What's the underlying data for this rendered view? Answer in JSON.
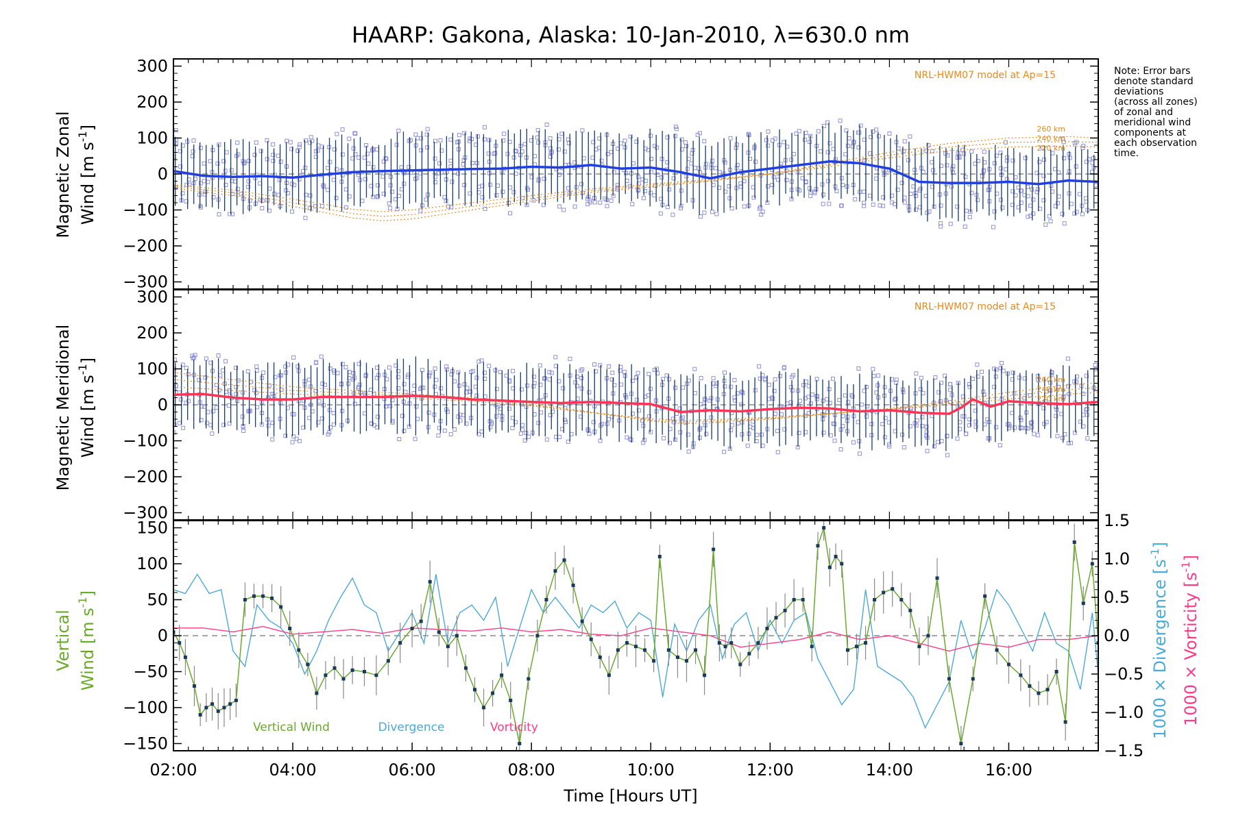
{
  "title": "HAARP: Gakona,  Alaska: 10-Jan-2010, λ=630.0 nm",
  "note_lines": [
    "Note: Error bars",
    "denote standard",
    "deviations",
    "(across all zones)",
    "of zonal and",
    "meridional wind",
    "components at",
    "each observation",
    "time."
  ],
  "model_label": "NRL-HWM07 model at Ap=15",
  "altitude_labels": [
    "260 km",
    "240 km",
    "220 km"
  ],
  "xlabel": "Time [Hours UT]",
  "colors": {
    "zonal": "#1f3fe0",
    "meridional": "#ff3355",
    "vertical": "#6aaa2a",
    "divergence": "#4aaad8",
    "vorticity": "#ff3a88",
    "model": "#e8891a",
    "scatter": "#8f8fd8",
    "errorbar": "#163a6a"
  },
  "chart_data": [
    {
      "type": "line",
      "panel": "zonal",
      "ylabel_line1": "Magnetic Zonal",
      "ylabel_line2": "Wind [m s",
      "ylabel_sup": "-1",
      "ylabel_end": "]",
      "xlim": [
        2.0,
        17.5
      ],
      "ylim": [
        -320,
        320
      ],
      "yticks": [
        "300",
        "200",
        "100",
        "0",
        "−100",
        "−200",
        "−300"
      ],
      "series": [
        {
          "name": "Magnetic Zonal Wind",
          "x": [
            2.0,
            2.5,
            3.0,
            3.5,
            4.0,
            4.5,
            5.0,
            5.5,
            6.0,
            6.5,
            7.0,
            7.5,
            8.0,
            8.5,
            9.0,
            9.5,
            10.0,
            10.5,
            11.0,
            11.5,
            12.0,
            12.5,
            13.0,
            13.5,
            14.0,
            14.5,
            15.0,
            15.5,
            16.0,
            16.5,
            17.0,
            17.5
          ],
          "y": [
            8,
            -5,
            -8,
            -6,
            -10,
            -2,
            5,
            8,
            10,
            12,
            14,
            15,
            20,
            18,
            25,
            15,
            18,
            5,
            -12,
            5,
            15,
            25,
            35,
            30,
            15,
            -22,
            -25,
            -25,
            -22,
            -28,
            -18,
            -22
          ]
        }
      ],
      "model_curves": [
        {
          "name": "260 km",
          "x": [
            2.0,
            3.0,
            4.0,
            5.0,
            5.5,
            6.0,
            7.0,
            8.0,
            9.0,
            10.0,
            11.0,
            12.0,
            13.0,
            14.0,
            15.0,
            16.0,
            17.0,
            17.5
          ],
          "y": [
            -40,
            -60,
            -90,
            -122,
            -130,
            -125,
            -100,
            -75,
            -52,
            -36,
            -20,
            0,
            30,
            60,
            85,
            100,
            104,
            100
          ]
        },
        {
          "name": "240 km",
          "x": [
            2.0,
            3.0,
            4.0,
            5.0,
            5.5,
            6.0,
            7.0,
            8.0,
            9.0,
            10.0,
            11.0,
            12.0,
            13.0,
            14.0,
            15.0,
            16.0,
            17.0,
            17.5
          ],
          "y": [
            -35,
            -52,
            -80,
            -110,
            -118,
            -113,
            -90,
            -68,
            -47,
            -32,
            -18,
            0,
            25,
            52,
            75,
            88,
            90,
            88
          ]
        },
        {
          "name": "220 km",
          "x": [
            2.0,
            3.0,
            4.0,
            5.0,
            5.5,
            6.0,
            7.0,
            8.0,
            9.0,
            10.0,
            11.0,
            12.0,
            13.0,
            14.0,
            15.0,
            16.0,
            17.0,
            17.5
          ],
          "y": [
            -30,
            -45,
            -70,
            -98,
            -105,
            -100,
            -80,
            -60,
            -42,
            -28,
            -15,
            0,
            20,
            45,
            65,
            75,
            78,
            75
          ]
        }
      ]
    },
    {
      "type": "line",
      "panel": "meridional",
      "ylabel_line1": "Magnetic Meridional",
      "ylabel_line2": "Wind [m s",
      "ylabel_sup": "-1",
      "ylabel_end": "]",
      "xlim": [
        2.0,
        17.5
      ],
      "ylim": [
        -320,
        320
      ],
      "yticks": [
        "300",
        "200",
        "100",
        "0",
        "−100",
        "−200",
        "−300"
      ],
      "series": [
        {
          "name": "Magnetic Meridional Wind",
          "x": [
            2.0,
            2.5,
            3.0,
            3.5,
            4.0,
            4.5,
            5.0,
            5.5,
            6.0,
            6.5,
            7.0,
            7.5,
            8.0,
            8.5,
            9.0,
            9.5,
            10.0,
            10.5,
            11.0,
            11.5,
            12.0,
            12.5,
            13.0,
            13.5,
            14.0,
            14.5,
            15.0,
            15.2,
            15.4,
            15.7,
            16.0,
            16.5,
            17.0,
            17.5
          ],
          "y": [
            28,
            30,
            20,
            15,
            15,
            22,
            22,
            22,
            25,
            22,
            15,
            12,
            8,
            5,
            8,
            5,
            2,
            -20,
            -15,
            -18,
            -12,
            -8,
            -10,
            -18,
            -15,
            -22,
            -25,
            -8,
            15,
            -5,
            10,
            5,
            2,
            8
          ]
        }
      ],
      "model_curves": [
        {
          "name": "260 km",
          "x": [
            2.0,
            3.0,
            4.0,
            5.0,
            6.0,
            7.0,
            8.0,
            9.0,
            10.0,
            10.5,
            11.0,
            12.0,
            13.0,
            14.0,
            15.0,
            16.0,
            17.0,
            17.5
          ],
          "y": [
            90,
            70,
            50,
            40,
            30,
            20,
            5,
            -20,
            -45,
            -52,
            -50,
            -40,
            -25,
            -10,
            10,
            35,
            55,
            62
          ]
        },
        {
          "name": "240 km",
          "x": [
            2.0,
            3.0,
            4.0,
            5.0,
            6.0,
            7.0,
            8.0,
            9.0,
            10.0,
            10.5,
            11.0,
            12.0,
            13.0,
            14.0,
            15.0,
            16.0,
            17.0,
            17.5
          ],
          "y": [
            70,
            55,
            40,
            32,
            24,
            15,
            0,
            -22,
            -42,
            -48,
            -46,
            -38,
            -25,
            -12,
            5,
            25,
            42,
            48
          ]
        },
        {
          "name": "220 km",
          "x": [
            2.0,
            3.0,
            4.0,
            5.0,
            6.0,
            7.0,
            8.0,
            9.0,
            10.0,
            10.5,
            11.0,
            12.0,
            13.0,
            14.0,
            15.0,
            16.0,
            17.0,
            17.5
          ],
          "y": [
            50,
            40,
            30,
            24,
            18,
            10,
            -3,
            -22,
            -38,
            -43,
            -42,
            -35,
            -24,
            -13,
            0,
            16,
            30,
            35
          ]
        }
      ]
    },
    {
      "type": "line",
      "panel": "vertical",
      "ylabel_line1": "Vertical",
      "ylabel_line2": "Wind [m s",
      "ylabel_sup": "-1",
      "ylabel_end": "]",
      "xlim": [
        2.0,
        17.5
      ],
      "ylim": [
        -160,
        160
      ],
      "yticks": [
        "150",
        "100",
        "50",
        "0",
        "−50",
        "−100",
        "−150"
      ],
      "y2lim": [
        -1.5,
        1.5
      ],
      "y2ticks": [
        "1.5",
        "1.0",
        "0.5",
        "0.0",
        "−0.5",
        "−1.0",
        "−1.5"
      ],
      "y2label_div": "1000 × Divergence [s",
      "y2label_vor": "1000 × Vorticity [s",
      "y2label_sup": "-1",
      "y2label_end": "]",
      "legend": [
        "Vertical Wind",
        "Divergence",
        "Vorticity"
      ],
      "xticks": [
        "02:00",
        "04:00",
        "06:00",
        "08:00",
        "10:00",
        "12:00",
        "14:00",
        "16:00"
      ],
      "xtick_values": [
        2,
        4,
        6,
        8,
        10,
        12,
        14,
        16
      ],
      "series": [
        {
          "name": "Vertical Wind",
          "axis": "left",
          "x": [
            2.0,
            2.1,
            2.2,
            2.35,
            2.45,
            2.55,
            2.65,
            2.75,
            2.85,
            2.95,
            3.05,
            3.2,
            3.35,
            3.5,
            3.65,
            3.8,
            3.95,
            4.1,
            4.25,
            4.4,
            4.55,
            4.7,
            4.85,
            5.0,
            5.2,
            5.4,
            5.6,
            5.8,
            6.0,
            6.15,
            6.3,
            6.45,
            6.6,
            6.75,
            6.9,
            7.05,
            7.2,
            7.35,
            7.5,
            7.65,
            7.8,
            7.95,
            8.1,
            8.25,
            8.4,
            8.55,
            8.7,
            8.85,
            9.0,
            9.15,
            9.3,
            9.45,
            9.6,
            9.75,
            9.9,
            10.05,
            10.15,
            10.3,
            10.45,
            10.6,
            10.75,
            10.9,
            11.05,
            11.15,
            11.25,
            11.35,
            11.5,
            11.65,
            11.8,
            11.95,
            12.1,
            12.25,
            12.4,
            12.55,
            12.7,
            12.8,
            12.9,
            13.0,
            13.1,
            13.2,
            13.3,
            13.45,
            13.6,
            13.75,
            13.9,
            14.05,
            14.2,
            14.35,
            14.5,
            14.65,
            14.8,
            15.0,
            15.2,
            15.4,
            15.6,
            15.8,
            16.0,
            16.2,
            16.35,
            16.5,
            16.65,
            16.8,
            16.95,
            17.1,
            17.25,
            17.4,
            17.5
          ],
          "y": [
            5,
            -10,
            -30,
            -70,
            -110,
            -100,
            -95,
            -105,
            -100,
            -95,
            -90,
            50,
            55,
            55,
            52,
            40,
            10,
            -20,
            -40,
            -80,
            -55,
            -45,
            -60,
            -48,
            -50,
            -55,
            -35,
            -10,
            10,
            20,
            75,
            5,
            -15,
            0,
            -45,
            -75,
            -100,
            -80,
            -55,
            -90,
            -150,
            -60,
            0,
            50,
            90,
            105,
            70,
            20,
            -5,
            -30,
            -55,
            -20,
            -10,
            -15,
            -20,
            -35,
            110,
            -20,
            -30,
            -35,
            -20,
            -55,
            120,
            -10,
            -15,
            -10,
            -40,
            -25,
            -10,
            10,
            25,
            35,
            50,
            50,
            -15,
            125,
            150,
            95,
            110,
            100,
            -20,
            -15,
            -10,
            50,
            60,
            65,
            50,
            35,
            -15,
            0,
            80,
            -60,
            -150,
            -60,
            55,
            -20,
            -40,
            -55,
            -70,
            -80,
            -75,
            -50,
            -120,
            130,
            45,
            100,
            -10
          ]
        },
        {
          "name": "Divergence",
          "axis": "right",
          "x": [
            2.0,
            2.2,
            2.4,
            2.6,
            2.8,
            3.0,
            3.2,
            3.4,
            3.6,
            3.8,
            4.0,
            4.2,
            4.4,
            4.6,
            4.8,
            5.0,
            5.2,
            5.4,
            5.6,
            5.8,
            6.0,
            6.2,
            6.4,
            6.6,
            6.8,
            7.0,
            7.2,
            7.4,
            7.6,
            7.8,
            8.0,
            8.2,
            8.4,
            8.6,
            8.8,
            9.0,
            9.2,
            9.4,
            9.6,
            9.8,
            10.0,
            10.2,
            10.4,
            10.6,
            10.8,
            11.0,
            11.2,
            11.4,
            11.6,
            11.8,
            12.0,
            12.2,
            12.4,
            12.6,
            12.8,
            13.0,
            13.2,
            13.4,
            13.6,
            13.8,
            14.0,
            14.2,
            14.4,
            14.6,
            14.8,
            15.0,
            15.2,
            15.4,
            15.6,
            15.8,
            16.0,
            16.2,
            16.4,
            16.6,
            16.8,
            17.0,
            17.2,
            17.4,
            17.5
          ],
          "y": [
            0.6,
            0.55,
            0.8,
            0.55,
            0.6,
            -0.2,
            -0.4,
            0.4,
            0.2,
            0.1,
            -0.1,
            -0.5,
            -0.2,
            0.2,
            0.5,
            0.75,
            0.4,
            0.3,
            -0.2,
            0.05,
            0.3,
            -0.1,
            0.8,
            -0.1,
            0.3,
            0.4,
            0.2,
            0.5,
            -0.4,
            0.1,
            0.6,
            0.3,
            0.5,
            0.3,
            0.1,
            0.4,
            0.3,
            0.45,
            0.1,
            0.3,
            0.2,
            -0.8,
            0.15,
            -0.2,
            0.2,
            0.4,
            -0.3,
            0.15,
            0.3,
            -0.2,
            0.2,
            -0.1,
            0.2,
            0.3,
            -0.3,
            -0.6,
            -0.9,
            -0.7,
            0.6,
            -0.4,
            -0.5,
            -0.6,
            -0.8,
            -1.2,
            -0.9,
            -0.6,
            0.2,
            -0.3,
            0.1,
            0.6,
            0.4,
            0.1,
            -0.2,
            0.3,
            -0.1,
            -0.2,
            -0.7,
            0.3,
            -0.5
          ]
        },
        {
          "name": "Vorticity",
          "axis": "right",
          "x": [
            2.0,
            2.5,
            3.0,
            3.5,
            4.0,
            4.5,
            5.0,
            5.5,
            6.0,
            6.5,
            7.0,
            7.5,
            8.0,
            8.5,
            9.0,
            9.5,
            10.0,
            10.5,
            11.0,
            11.5,
            12.0,
            12.5,
            13.0,
            13.5,
            14.0,
            14.5,
            15.0,
            15.5,
            16.0,
            16.5,
            17.0,
            17.5
          ],
          "y": [
            0.1,
            0.1,
            0.05,
            0.12,
            0.02,
            0.05,
            0.08,
            0.03,
            0.1,
            0.08,
            0.06,
            0.1,
            0.05,
            0.08,
            0.02,
            0.0,
            0.1,
            0.05,
            0.0,
            -0.15,
            -0.1,
            -0.05,
            0.05,
            -0.05,
            0.0,
            -0.1,
            -0.2,
            -0.1,
            -0.15,
            -0.05,
            -0.05,
            0.0
          ]
        }
      ]
    }
  ]
}
